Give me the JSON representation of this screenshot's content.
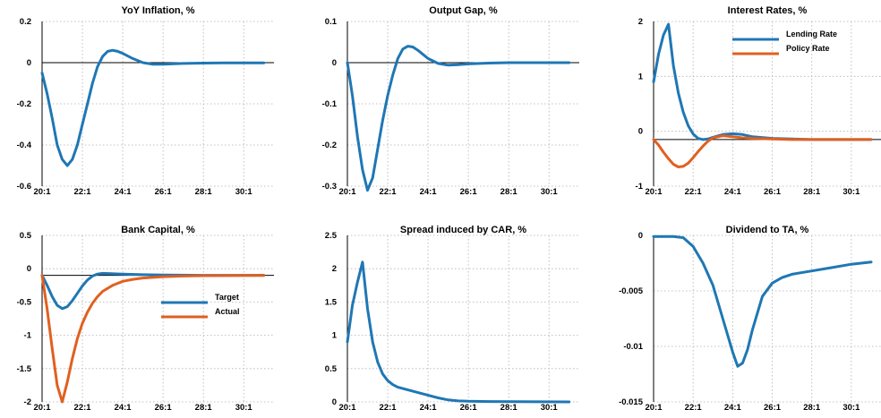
{
  "chart_data": [
    {
      "type": "line",
      "title": "YoY Inflation, %",
      "xticks": [
        "20:1",
        "22:1",
        "24:1",
        "26:1",
        "28:1",
        "30:1"
      ],
      "ylim": [
        -0.6,
        0.2
      ],
      "yticks": [
        -0.6,
        -0.4,
        -0.2,
        0,
        0.2
      ],
      "ytick_labels": [
        "-0.6",
        "-0.4",
        "-0.2",
        "0",
        "0.2"
      ],
      "zero_line": 0,
      "series": [
        {
          "color": "#1f77b4",
          "points": [
            [
              20.0,
              -0.05
            ],
            [
              20.25,
              -0.15
            ],
            [
              20.5,
              -0.27
            ],
            [
              20.75,
              -0.4
            ],
            [
              21.0,
              -0.47
            ],
            [
              21.25,
              -0.5
            ],
            [
              21.5,
              -0.47
            ],
            [
              21.75,
              -0.4
            ],
            [
              22.0,
              -0.3
            ],
            [
              22.25,
              -0.2
            ],
            [
              22.5,
              -0.1
            ],
            [
              22.75,
              -0.02
            ],
            [
              23.0,
              0.03
            ],
            [
              23.25,
              0.055
            ],
            [
              23.5,
              0.06
            ],
            [
              23.75,
              0.055
            ],
            [
              24.0,
              0.045
            ],
            [
              24.5,
              0.02
            ],
            [
              25.0,
              0.0
            ],
            [
              25.5,
              -0.008
            ],
            [
              26.0,
              -0.008
            ],
            [
              27.0,
              -0.004
            ],
            [
              28.0,
              -0.002
            ],
            [
              29.0,
              -0.001
            ],
            [
              30.0,
              -0.001
            ],
            [
              31.0,
              -0.001
            ]
          ]
        }
      ]
    },
    {
      "type": "line",
      "title": "Output Gap, %",
      "xticks": [
        "20:1",
        "22:1",
        "24:1",
        "26:1",
        "28:1",
        "30:1"
      ],
      "ylim": [
        -0.3,
        0.1
      ],
      "yticks": [
        -0.3,
        -0.2,
        -0.1,
        0,
        0.1
      ],
      "ytick_labels": [
        "-0.3",
        "-0.2",
        "-0.1",
        "0",
        "0.1"
      ],
      "zero_line": 0,
      "series": [
        {
          "color": "#1f77b4",
          "points": [
            [
              20.0,
              0.0
            ],
            [
              20.25,
              -0.08
            ],
            [
              20.5,
              -0.18
            ],
            [
              20.75,
              -0.26
            ],
            [
              21.0,
              -0.31
            ],
            [
              21.25,
              -0.28
            ],
            [
              21.5,
              -0.21
            ],
            [
              21.75,
              -0.14
            ],
            [
              22.0,
              -0.08
            ],
            [
              22.25,
              -0.03
            ],
            [
              22.5,
              0.01
            ],
            [
              22.75,
              0.033
            ],
            [
              23.0,
              0.04
            ],
            [
              23.25,
              0.038
            ],
            [
              23.5,
              0.03
            ],
            [
              23.75,
              0.02
            ],
            [
              24.0,
              0.01
            ],
            [
              24.5,
              -0.002
            ],
            [
              25.0,
              -0.006
            ],
            [
              25.5,
              -0.005
            ],
            [
              26.0,
              -0.003
            ],
            [
              27.0,
              -0.001
            ],
            [
              28.0,
              0.0
            ],
            [
              30.0,
              0.0
            ],
            [
              31.0,
              0.0
            ]
          ]
        }
      ]
    },
    {
      "type": "line",
      "title": "Interest Rates, %",
      "xticks": [
        "20:1",
        "22:1",
        "24:1",
        "26:1",
        "28:1",
        "30:1"
      ],
      "ylim": [
        -1,
        2
      ],
      "yticks": [
        -1,
        0,
        1,
        2
      ],
      "ytick_labels": [
        "-1",
        "0",
        "1",
        "2"
      ],
      "zero_line": -0.15,
      "legend_position": "top-right",
      "series": [
        {
          "name": "Lending Rate",
          "color": "#1f77b4",
          "points": [
            [
              20.0,
              0.9
            ],
            [
              20.25,
              1.4
            ],
            [
              20.5,
              1.75
            ],
            [
              20.75,
              1.95
            ],
            [
              21.0,
              1.2
            ],
            [
              21.25,
              0.7
            ],
            [
              21.5,
              0.35
            ],
            [
              21.75,
              0.1
            ],
            [
              22.0,
              -0.05
            ],
            [
              22.25,
              -0.13
            ],
            [
              22.5,
              -0.15
            ],
            [
              22.75,
              -0.14
            ],
            [
              23.0,
              -0.11
            ],
            [
              23.5,
              -0.06
            ],
            [
              24.0,
              -0.045
            ],
            [
              24.5,
              -0.06
            ],
            [
              25.0,
              -0.1
            ],
            [
              26.0,
              -0.13
            ],
            [
              27.0,
              -0.14
            ],
            [
              28.0,
              -0.15
            ],
            [
              31.0,
              -0.15
            ]
          ]
        },
        {
          "name": "Policy Rate",
          "color": "#e06020",
          "points": [
            [
              20.0,
              -0.15
            ],
            [
              20.25,
              -0.25
            ],
            [
              20.5,
              -0.38
            ],
            [
              20.75,
              -0.5
            ],
            [
              21.0,
              -0.6
            ],
            [
              21.25,
              -0.65
            ],
            [
              21.5,
              -0.64
            ],
            [
              21.75,
              -0.58
            ],
            [
              22.0,
              -0.48
            ],
            [
              22.25,
              -0.37
            ],
            [
              22.5,
              -0.27
            ],
            [
              22.75,
              -0.18
            ],
            [
              23.0,
              -0.12
            ],
            [
              23.5,
              -0.08
            ],
            [
              24.0,
              -0.1
            ],
            [
              24.5,
              -0.12
            ],
            [
              25.0,
              -0.13
            ],
            [
              26.0,
              -0.14
            ],
            [
              27.0,
              -0.15
            ],
            [
              31.0,
              -0.15
            ]
          ]
        }
      ]
    },
    {
      "type": "line",
      "title": "Bank Capital, %",
      "xticks": [
        "20:1",
        "22:1",
        "24:1",
        "26:1",
        "28:1",
        "30:1"
      ],
      "ylim": [
        -2,
        0.5
      ],
      "yticks": [
        -2,
        -1.5,
        -1,
        -0.5,
        0,
        0.5
      ],
      "ytick_labels": [
        "-2",
        "-1.5",
        "-1",
        "-0.5",
        "0",
        "0.5"
      ],
      "zero_line": -0.1,
      "legend_position": "center-right",
      "series": [
        {
          "name": "Target",
          "color": "#1f77b4",
          "points": [
            [
              20.0,
              -0.1
            ],
            [
              20.25,
              -0.25
            ],
            [
              20.5,
              -0.42
            ],
            [
              20.75,
              -0.55
            ],
            [
              21.0,
              -0.6
            ],
            [
              21.25,
              -0.57
            ],
            [
              21.5,
              -0.48
            ],
            [
              21.75,
              -0.37
            ],
            [
              22.0,
              -0.26
            ],
            [
              22.25,
              -0.17
            ],
            [
              22.5,
              -0.11
            ],
            [
              22.75,
              -0.08
            ],
            [
              23.0,
              -0.07
            ],
            [
              24.0,
              -0.08
            ],
            [
              25.0,
              -0.09
            ],
            [
              26.0,
              -0.095
            ],
            [
              28.0,
              -0.1
            ],
            [
              31.0,
              -0.1
            ]
          ]
        },
        {
          "name": "Actual",
          "color": "#e06020",
          "points": [
            [
              20.0,
              -0.1
            ],
            [
              20.25,
              -0.6
            ],
            [
              20.5,
              -1.2
            ],
            [
              20.75,
              -1.75
            ],
            [
              21.0,
              -2.0
            ],
            [
              21.25,
              -1.7
            ],
            [
              21.5,
              -1.35
            ],
            [
              21.75,
              -1.05
            ],
            [
              22.0,
              -0.82
            ],
            [
              22.25,
              -0.65
            ],
            [
              22.5,
              -0.52
            ],
            [
              22.75,
              -0.42
            ],
            [
              23.0,
              -0.34
            ],
            [
              23.5,
              -0.25
            ],
            [
              24.0,
              -0.19
            ],
            [
              24.5,
              -0.16
            ],
            [
              25.0,
              -0.14
            ],
            [
              26.0,
              -0.12
            ],
            [
              27.0,
              -0.11
            ],
            [
              28.0,
              -0.105
            ],
            [
              31.0,
              -0.1
            ]
          ]
        }
      ]
    },
    {
      "type": "line",
      "title": "Spread induced by CAR, %",
      "xticks": [
        "20:1",
        "22:1",
        "24:1",
        "26:1",
        "28:1",
        "30:1"
      ],
      "ylim": [
        0,
        2.5
      ],
      "yticks": [
        0,
        0.5,
        1,
        1.5,
        2,
        2.5
      ],
      "ytick_labels": [
        "0",
        "0.5",
        "1",
        "1.5",
        "2",
        "2.5"
      ],
      "series": [
        {
          "color": "#1f77b4",
          "points": [
            [
              20.0,
              0.9
            ],
            [
              20.25,
              1.45
            ],
            [
              20.5,
              1.8
            ],
            [
              20.75,
              2.1
            ],
            [
              21.0,
              1.4
            ],
            [
              21.25,
              0.9
            ],
            [
              21.5,
              0.6
            ],
            [
              21.75,
              0.42
            ],
            [
              22.0,
              0.32
            ],
            [
              22.25,
              0.26
            ],
            [
              22.5,
              0.22
            ],
            [
              23.0,
              0.18
            ],
            [
              23.5,
              0.14
            ],
            [
              24.0,
              0.1
            ],
            [
              24.5,
              0.06
            ],
            [
              25.0,
              0.03
            ],
            [
              25.5,
              0.015
            ],
            [
              26.0,
              0.01
            ],
            [
              27.0,
              0.005
            ],
            [
              31.0,
              0.0
            ]
          ]
        }
      ]
    },
    {
      "type": "line",
      "title": "Dividend to TA, %",
      "xticks": [
        "20:1",
        "22:1",
        "24:1",
        "26:1",
        "28:1",
        "30:1"
      ],
      "ylim": [
        -0.015,
        0.0
      ],
      "yticks": [
        -0.015,
        -0.01,
        -0.005,
        0
      ],
      "ytick_labels": [
        "-0.015",
        "-0.01",
        "-0.005",
        "0"
      ],
      "series": [
        {
          "color": "#1f77b4",
          "points": [
            [
              20.0,
              -0.0001
            ],
            [
              21.0,
              -0.0001
            ],
            [
              21.5,
              -0.0002
            ],
            [
              22.0,
              -0.001
            ],
            [
              22.5,
              -0.0025
            ],
            [
              23.0,
              -0.0045
            ],
            [
              23.5,
              -0.0075
            ],
            [
              24.0,
              -0.0105
            ],
            [
              24.25,
              -0.0118
            ],
            [
              24.5,
              -0.0115
            ],
            [
              24.75,
              -0.0103
            ],
            [
              25.0,
              -0.0085
            ],
            [
              25.5,
              -0.0055
            ],
            [
              26.0,
              -0.0043
            ],
            [
              26.5,
              -0.0038
            ],
            [
              27.0,
              -0.0035
            ],
            [
              28.0,
              -0.0032
            ],
            [
              29.0,
              -0.0029
            ],
            [
              30.0,
              -0.0026
            ],
            [
              31.0,
              -0.0024
            ]
          ]
        }
      ]
    }
  ]
}
